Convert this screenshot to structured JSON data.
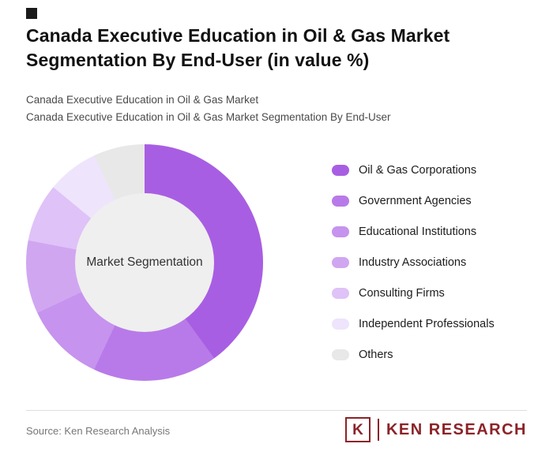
{
  "page": {
    "title": "Canada Executive Education in Oil & Gas Market Segmentation By End-User (in value %)",
    "subtitle_line1": "Canada Executive Education in Oil & Gas Market",
    "subtitle_line2": "Canada Executive Education in Oil & Gas Market Segmentation By End-User"
  },
  "chart_data": {
    "type": "pie",
    "variant": "donut",
    "title": "Canada Executive Education in Oil & Gas Market Segmentation By End-User (in value %)",
    "center_label": "Market Segmentation",
    "labels": [
      "Oil & Gas Corporations",
      "Government Agencies",
      "Educational Institutions",
      "Industry Associations",
      "Consulting Firms",
      "Independent Professionals",
      "Others"
    ],
    "values": [
      40,
      17,
      11,
      10,
      8,
      7,
      7
    ],
    "colors": [
      "#a85ee2",
      "#b87ae8",
      "#c693ee",
      "#d0a6f1",
      "#dfc2f7",
      "#eee4fc",
      "#e8e8e8"
    ],
    "hole_color": "#efefef",
    "legend_position": "right",
    "start_angle_deg": 0,
    "direction": "clockwise"
  },
  "footer": {
    "source": "Source: Ken Research Analysis",
    "logo_letter": "K",
    "logo_text": "KEN RESEARCH",
    "logo_color": "#8b2328"
  }
}
